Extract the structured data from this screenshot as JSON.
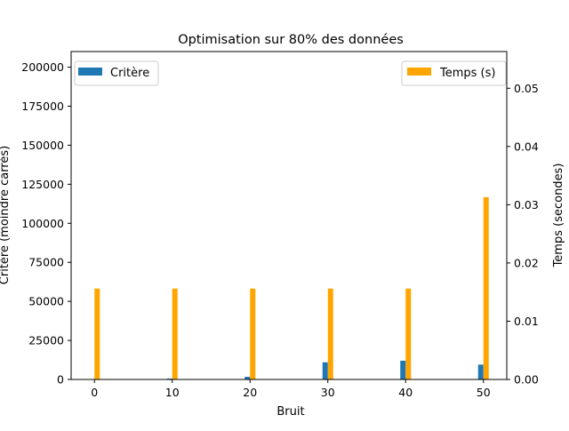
{
  "colors": {
    "critere": "#1f77b4",
    "temps": "#ffa500",
    "axis": "#000000",
    "legend_border": "#cccccc",
    "background": "#ffffff"
  },
  "chart_data": {
    "type": "bar",
    "title": "Optimisation sur 80% des données",
    "xlabel": "Bruit",
    "ylabel_left": "Critère (moindre carrés)",
    "ylabel_right": "Temps (secondes)",
    "x": [
      0,
      10,
      20,
      30,
      40,
      50
    ],
    "xlim": [
      -3,
      53
    ],
    "ylim_left": [
      0,
      210000
    ],
    "ylim_right": [
      0,
      0.0563
    ],
    "x_ticks": [
      "0",
      "10",
      "20",
      "30",
      "40",
      "50"
    ],
    "y_ticks_left": [
      "0",
      "25000",
      "50000",
      "75000",
      "100000",
      "125000",
      "150000",
      "175000",
      "200000"
    ],
    "y_ticks_right": [
      "0.00",
      "0.01",
      "0.02",
      "0.03",
      "0.04",
      "0.05"
    ],
    "series": [
      {
        "name": "Critère",
        "axis": "left",
        "values": [
          0,
          600,
          1700,
          11000,
          12000,
          9500
        ]
      },
      {
        "name": "Temps (s)",
        "axis": "right",
        "values": [
          0.0156,
          0.0156,
          0.0156,
          0.0156,
          0.0156,
          0.0313
        ]
      }
    ],
    "legend": {
      "left": {
        "label": "Critère",
        "placement": "top-left"
      },
      "right": {
        "label": "Temps (s)",
        "placement": "top-right"
      }
    },
    "grid": false
  }
}
